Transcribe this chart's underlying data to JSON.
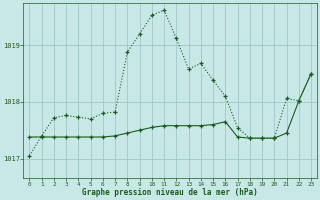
{
  "title": "Graphe pression niveau de la mer (hPa)",
  "bg_color": "#c8e8e8",
  "grid_color": "#a0c8c8",
  "line_color": "#1a5c1a",
  "xlim": [
    -0.5,
    23.5
  ],
  "ylim": [
    1016.65,
    1019.75
  ],
  "yticks": [
    1017,
    1018,
    1019
  ],
  "xticks": [
    0,
    1,
    2,
    3,
    4,
    5,
    6,
    7,
    8,
    9,
    10,
    11,
    12,
    13,
    14,
    15,
    16,
    17,
    18,
    19,
    20,
    21,
    22,
    23
  ],
  "series1_x": [
    0,
    1,
    2,
    3,
    4,
    5,
    6,
    7,
    8,
    9,
    10,
    11,
    12,
    13,
    14,
    15,
    16,
    17,
    18,
    19,
    20,
    21,
    22,
    23
  ],
  "series1_y": [
    1017.05,
    1017.4,
    1017.72,
    1017.76,
    1017.73,
    1017.7,
    1017.8,
    1017.82,
    1018.88,
    1019.2,
    1019.53,
    1019.62,
    1019.12,
    1018.58,
    1018.68,
    1018.38,
    1018.1,
    1017.54,
    1017.36,
    1017.36,
    1017.36,
    1018.06,
    1018.02,
    1018.5
  ],
  "series2_x": [
    0,
    1,
    2,
    3,
    4,
    5,
    6,
    7,
    8,
    9,
    10,
    11,
    12,
    13,
    14,
    15,
    16,
    17,
    18,
    19,
    20,
    21,
    22,
    23
  ],
  "series2_y": [
    1017.38,
    1017.38,
    1017.38,
    1017.38,
    1017.38,
    1017.38,
    1017.38,
    1017.4,
    1017.45,
    1017.5,
    1017.55,
    1017.58,
    1017.58,
    1017.58,
    1017.58,
    1017.6,
    1017.65,
    1017.38,
    1017.36,
    1017.36,
    1017.36,
    1017.45,
    1018.02,
    1018.5
  ]
}
